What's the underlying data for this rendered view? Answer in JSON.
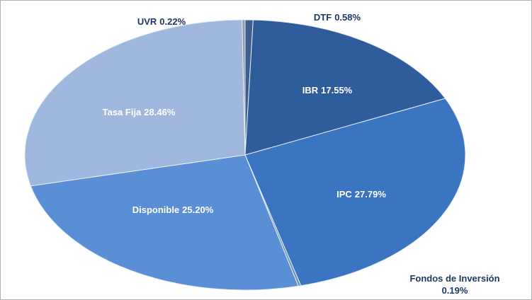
{
  "chart_data": {
    "type": "pie",
    "categories": [
      "DTF",
      "IBR",
      "IPC",
      "Fondos de Inversión",
      "Disponible",
      "Tasa Fija",
      "UVR"
    ],
    "values": [
      0.58,
      17.55,
      27.79,
      0.19,
      25.2,
      28.46,
      0.22
    ],
    "value_labels": [
      "0.58%",
      "17.55%",
      "27.79%",
      "0.19%",
      "25.20%",
      "28.46%",
      "0.22%"
    ],
    "colors": [
      "#3d5f8c",
      "#2f5d9b",
      "#3b74c0",
      "#6d8fb8",
      "#5a8fd6",
      "#9fb7dc",
      "#8e9bab"
    ]
  }
}
